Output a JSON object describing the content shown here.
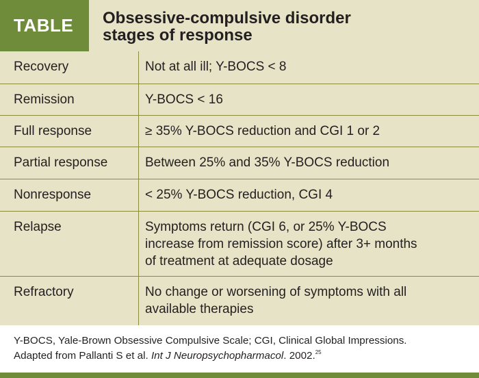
{
  "header": {
    "tag": "TABLE",
    "title_line1": "Obsessive-compulsive disorder",
    "title_line2": "stages of response"
  },
  "rows": [
    {
      "stage": "Recovery",
      "definition": "Not at all ill; Y-BOCS < 8"
    },
    {
      "stage": "Remission",
      "definition": "Y-BOCS < 16"
    },
    {
      "stage": "Full response",
      "definition": "≥ 35% Y-BOCS reduction and CGI 1 or 2"
    },
    {
      "stage": "Partial response",
      "definition": "Between 25% and 35% Y-BOCS reduction"
    },
    {
      "stage": "Nonresponse",
      "definition": "< 25% Y-BOCS reduction, CGI 4"
    },
    {
      "stage": "Relapse",
      "definition_lines": [
        "Symptoms return (CGI 6, or 25% Y-BOCS",
        "increase from remission score) after 3+ months",
        "of treatment at adequate dosage"
      ]
    },
    {
      "stage": "Refractory",
      "definition_lines": [
        "No change or worsening of symptoms with all",
        "available therapies"
      ]
    }
  ],
  "footnote": {
    "line1": "Y-BOCS, Yale-Brown Obsessive Compulsive Scale; CGI, Clinical Global Impressions.",
    "line2_prefix": "Adapted from Pallanti S et al. ",
    "line2_journal": "Int J Neuropsychopharmacol",
    "line2_suffix": ". 2002.",
    "reference_number": "25"
  },
  "colors": {
    "accent_green": "#6f8c3a",
    "table_background": "#e6e3c6",
    "rule": "#8a8c3e"
  }
}
